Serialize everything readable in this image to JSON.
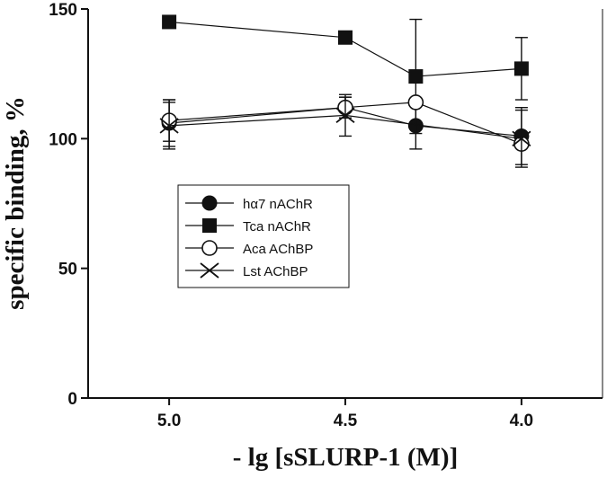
{
  "chart_data": {
    "type": "line",
    "title": "",
    "xlabel": "- lg [sSLURP-1 (M)]",
    "ylabel": "specific binding, %",
    "x_reversed": true,
    "xlim": [
      5.23,
      3.77
    ],
    "ylim": [
      0,
      150
    ],
    "xticks": [
      5.0,
      4.5,
      4.0
    ],
    "xtick_labels": [
      "5.0",
      "4.5",
      "4.0"
    ],
    "yticks": [
      0,
      50,
      100,
      150
    ],
    "ytick_labels": [
      "0",
      "50",
      "100",
      "150"
    ],
    "grid": false,
    "legend_position": "center-left",
    "series": [
      {
        "name": "hα7 nAChR",
        "marker": "filled-circle",
        "x": [
          5.0,
          4.5,
          4.3,
          4.0
        ],
        "y": [
          106,
          112,
          105,
          101
        ],
        "err": [
          9,
          4,
          9,
          11
        ]
      },
      {
        "name": "Tca nAChR",
        "marker": "filled-square",
        "x": [
          5.0,
          4.5,
          4.3,
          4.0
        ],
        "y": [
          145,
          139,
          124,
          127
        ],
        "err": [
          0,
          2,
          22,
          12
        ]
      },
      {
        "name": "Aca AChBP",
        "marker": "open-circle",
        "x": [
          5.0,
          4.5,
          4.3,
          4.0
        ],
        "y": [
          107,
          112,
          114,
          98
        ],
        "err": [
          8,
          4,
          0,
          0
        ]
      },
      {
        "name": "Lst AChBP",
        "marker": "cross",
        "x": [
          5.0,
          4.5,
          4.0
        ],
        "y": [
          105,
          109,
          100
        ],
        "err": [
          9,
          8,
          11
        ]
      }
    ]
  }
}
